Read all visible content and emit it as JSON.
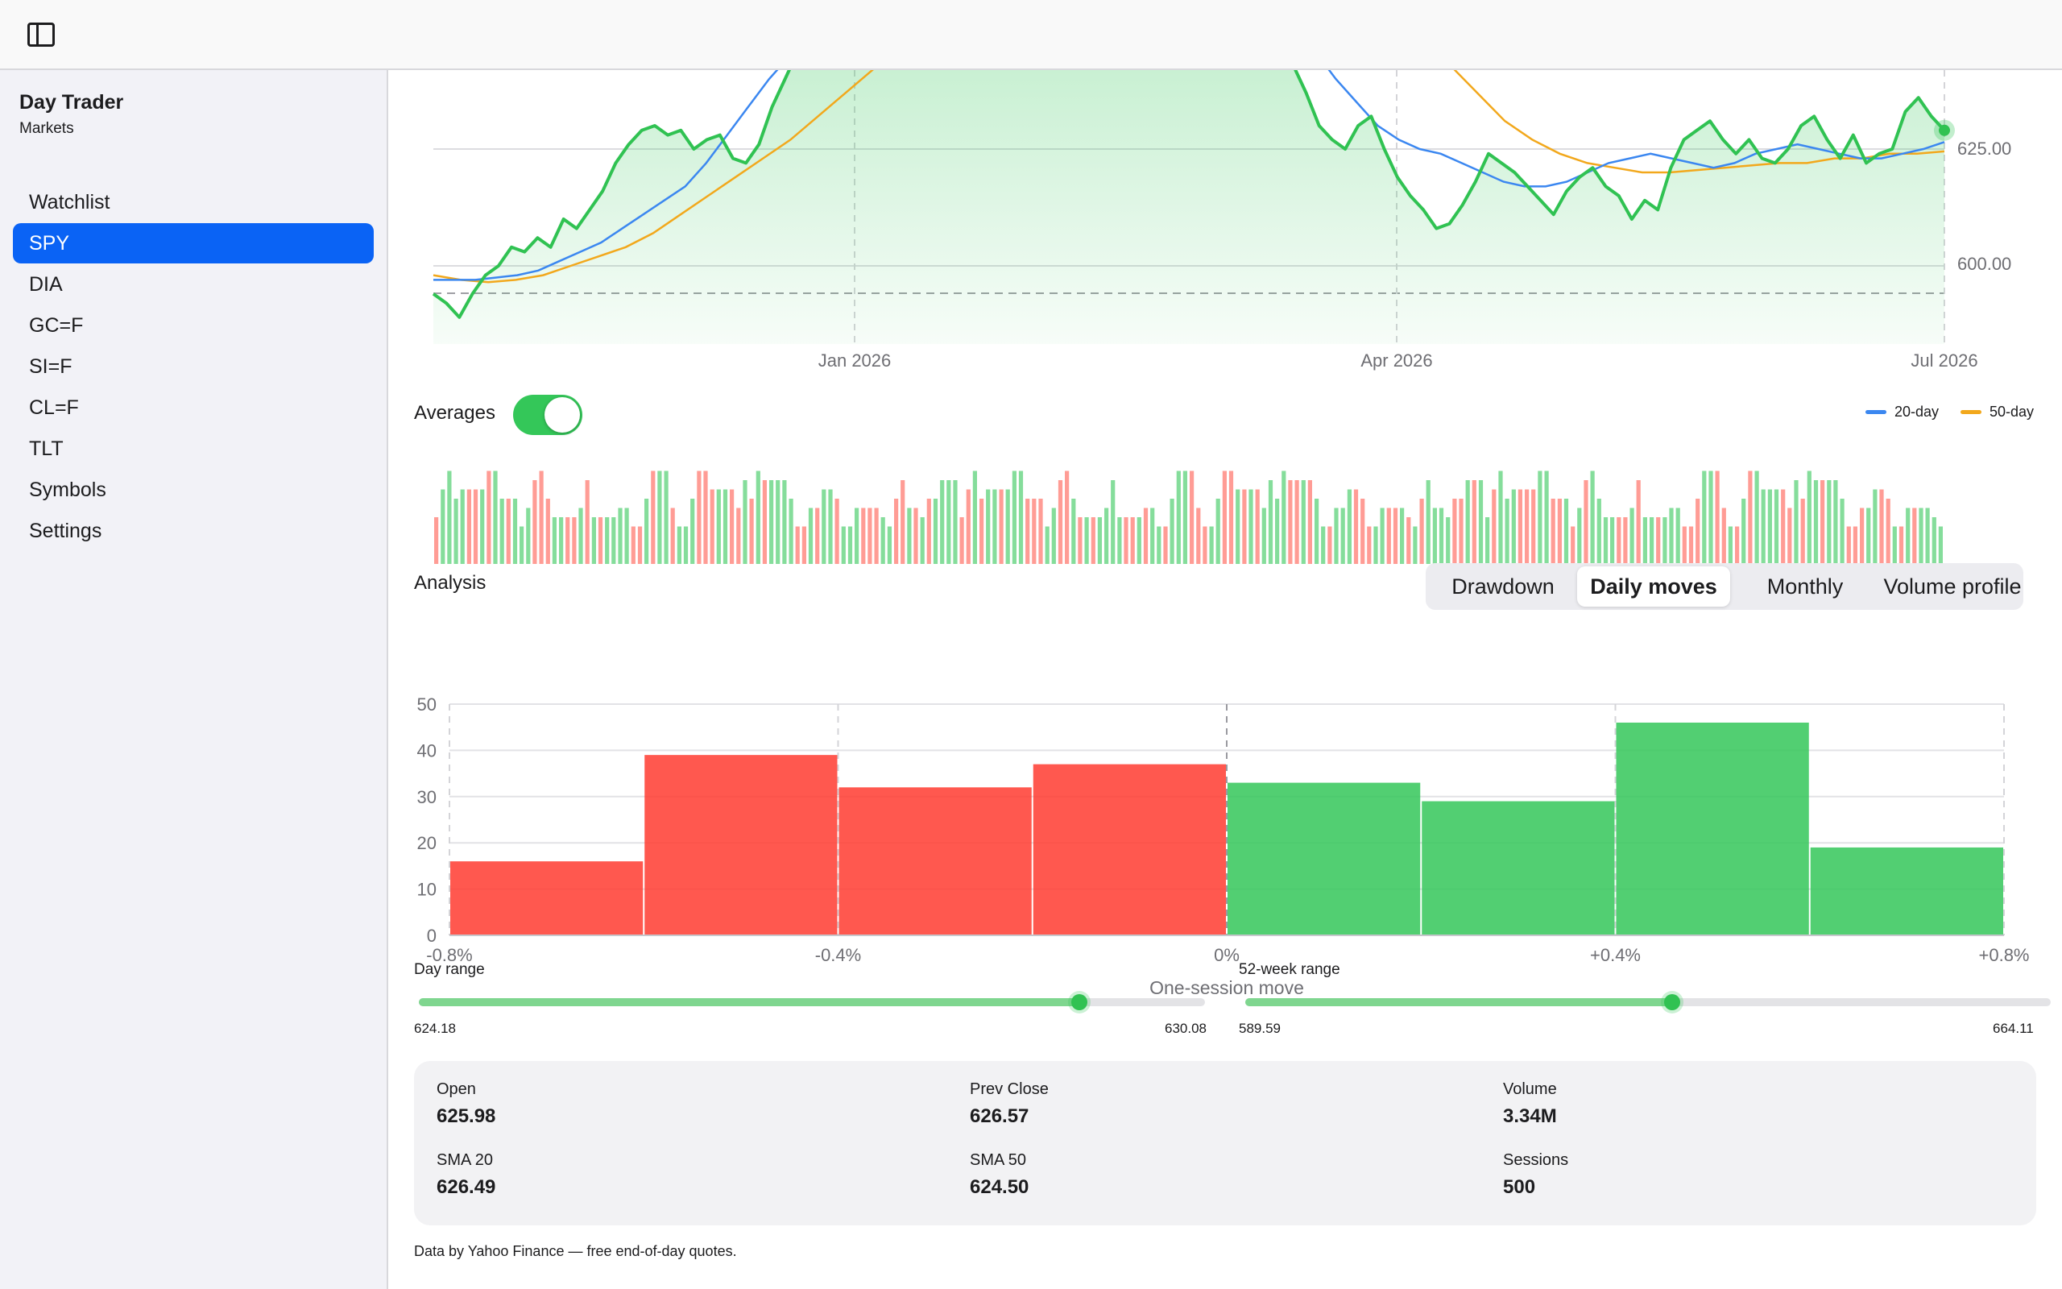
{
  "app": {
    "name": "Day Trader",
    "subtitle": "Markets"
  },
  "topbar": {
    "toggle_icon": "sidebar-toggle-icon"
  },
  "sidebar": {
    "items": [
      {
        "label": "Watchlist",
        "active": false
      },
      {
        "label": "SPY",
        "active": true
      },
      {
        "label": "DIA",
        "active": false
      },
      {
        "label": "GC=F",
        "active": false
      },
      {
        "label": "SI=F",
        "active": false
      },
      {
        "label": "CL=F",
        "active": false
      },
      {
        "label": "TLT",
        "active": false
      },
      {
        "label": "Symbols",
        "active": false
      },
      {
        "label": "Settings",
        "active": false
      }
    ]
  },
  "colors": {
    "accent": "#0a63f5",
    "up": "#34c759",
    "down": "#ff5a4f",
    "sma20": "#3b87f0",
    "sma50": "#f2a81c"
  },
  "averages": {
    "label": "Averages",
    "enabled": true
  },
  "legend": {
    "sma20": "20-day",
    "sma50": "50-day"
  },
  "analysis": {
    "title": "Analysis",
    "tabs": [
      "Drawdown",
      "Daily moves",
      "Monthly",
      "Volume profile"
    ],
    "active_tab": "Daily moves"
  },
  "ranges": {
    "day": {
      "label": "Day range",
      "low": "624.18",
      "high": "630.08",
      "position": 0.84
    },
    "week52": {
      "label": "52-week range",
      "low": "589.59",
      "high": "664.11",
      "position": 0.53
    }
  },
  "stats": {
    "open": {
      "label": "Open",
      "value": "625.98"
    },
    "prev_close": {
      "label": "Prev Close",
      "value": "626.57"
    },
    "volume": {
      "label": "Volume",
      "value": "3.34M"
    },
    "sma20": {
      "label": "SMA 20",
      "value": "626.49"
    },
    "sma50": {
      "label": "SMA 50",
      "value": "624.50"
    },
    "sessions": {
      "label": "Sessions",
      "value": "500"
    }
  },
  "footer": "Data by Yahoo Finance — free end-of-day quotes.",
  "chart_data": [
    {
      "type": "line",
      "title": "",
      "x_tick_labels": [
        "Jan 2026",
        "Apr 2026",
        "Jul 2026"
      ],
      "y_tick_labels": [
        "625.00",
        "600.00"
      ],
      "series": [
        {
          "name": "",
          "values": [
            594,
            592,
            589,
            594,
            598,
            600,
            604,
            603,
            606,
            604,
            610,
            608,
            612,
            616,
            622,
            626,
            629,
            630,
            628,
            629,
            625,
            627,
            628,
            623,
            622,
            626,
            634,
            640,
            646,
            652,
            650,
            656,
            662,
            668,
            665,
            662,
            668,
            667,
            671,
            668,
            664,
            666,
            670,
            662,
            655,
            648,
            650,
            661,
            666,
            670,
            672,
            668,
            676,
            690,
            700,
            705,
            710,
            712,
            708,
            700,
            690,
            680,
            670,
            665,
            660,
            650,
            643,
            637,
            630,
            627,
            625,
            630,
            632,
            625,
            619,
            615,
            612,
            608,
            609,
            613,
            618,
            624,
            622,
            620,
            617,
            614,
            611,
            616,
            619,
            621,
            617,
            615,
            610,
            614,
            612,
            621,
            627,
            629,
            631,
            627,
            624,
            627,
            623,
            622,
            625,
            630,
            632,
            627,
            623,
            628,
            622,
            624,
            625,
            633,
            636,
            632,
            629
          ]
        },
        {
          "name": "20-day",
          "values": [
            597,
            597,
            597,
            597.5,
            598,
            599,
            601,
            603,
            605,
            608,
            611,
            614,
            617,
            622,
            628,
            634,
            640,
            645,
            649,
            652,
            654,
            656,
            657,
            658,
            660,
            663,
            666,
            670,
            675,
            680,
            686,
            692,
            698,
            702,
            700,
            694,
            688,
            682,
            675,
            668,
            661,
            654,
            646,
            640,
            635,
            630,
            627,
            625,
            624,
            622,
            620,
            618,
            617,
            617,
            618,
            620,
            622,
            623,
            624,
            623,
            622,
            621,
            622,
            624,
            625,
            626,
            625,
            624,
            623,
            623,
            624,
            625,
            626.5
          ]
        },
        {
          "name": "50-day",
          "values": [
            598,
            597,
            596.5,
            597,
            598,
            600,
            602,
            604,
            607,
            611,
            615,
            619,
            623,
            627,
            632,
            637,
            642,
            646,
            650,
            654,
            658,
            661,
            664,
            667,
            670,
            672,
            674,
            675,
            676,
            676,
            675,
            673,
            670,
            666,
            661,
            655,
            649,
            643,
            637,
            631,
            627,
            624,
            622,
            621,
            620,
            620,
            620.5,
            621,
            621.5,
            622,
            622,
            623,
            623,
            624,
            624,
            624.5
          ]
        }
      ]
    },
    {
      "type": "bar",
      "title": "",
      "note": "daily volume bars colored by up/down session",
      "values": [
        4,
        8,
        5,
        3,
        6,
        9,
        5,
        7,
        4,
        8,
        6,
        3,
        5,
        7,
        9,
        4,
        6,
        8,
        5,
        3,
        7,
        6,
        4,
        9,
        5,
        8,
        3,
        6,
        7,
        4,
        8,
        5,
        9,
        6,
        3,
        7,
        5,
        8,
        4,
        6,
        9,
        3,
        7,
        5,
        8,
        6,
        4,
        9,
        5,
        7,
        3,
        8,
        6,
        4,
        7,
        5,
        9,
        3,
        6,
        8,
        4,
        7,
        5,
        9,
        6,
        3,
        8,
        4,
        7,
        5,
        6,
        9,
        3,
        8,
        5,
        7,
        4,
        6,
        9,
        5
      ],
      "up": [
        0,
        1,
        0,
        1,
        1,
        0,
        1,
        0,
        1,
        1,
        0,
        0,
        1,
        1,
        0,
        1,
        0,
        1,
        1,
        0,
        1,
        0,
        1,
        1,
        0,
        0,
        1,
        0,
        1,
        1,
        0,
        1,
        1,
        0,
        1,
        0,
        0,
        1,
        1,
        0,
        1,
        1,
        0,
        0,
        1,
        0,
        1,
        1,
        0,
        1,
        0,
        0,
        1,
        1,
        0,
        1,
        0,
        1,
        0,
        1,
        1,
        0,
        1,
        0,
        0,
        1,
        1,
        0,
        1,
        0,
        1,
        1,
        0,
        0,
        1,
        0,
        1,
        1,
        0,
        1
      ]
    },
    {
      "type": "bar",
      "title": "",
      "xlabel": "One-session move",
      "x_tick_labels": [
        "-0.8%",
        "-0.4%",
        "0%",
        "+0.4%",
        "+0.8%"
      ],
      "y_tick_labels": [
        "50",
        "40",
        "30",
        "20",
        "10",
        "0"
      ],
      "ylim": [
        0,
        50
      ],
      "bins": [
        {
          "from": -0.8,
          "to": -0.6,
          "count": 16,
          "direction": "down"
        },
        {
          "from": -0.6,
          "to": -0.4,
          "count": 39,
          "direction": "down"
        },
        {
          "from": -0.4,
          "to": -0.2,
          "count": 32,
          "direction": "down"
        },
        {
          "from": -0.2,
          "to": 0.0,
          "count": 37,
          "direction": "down"
        },
        {
          "from": 0.0,
          "to": 0.2,
          "count": 33,
          "direction": "up"
        },
        {
          "from": 0.2,
          "to": 0.4,
          "count": 29,
          "direction": "up"
        },
        {
          "from": 0.4,
          "to": 0.6,
          "count": 46,
          "direction": "up"
        },
        {
          "from": 0.6,
          "to": 0.8,
          "count": 19,
          "direction": "up"
        }
      ]
    }
  ]
}
